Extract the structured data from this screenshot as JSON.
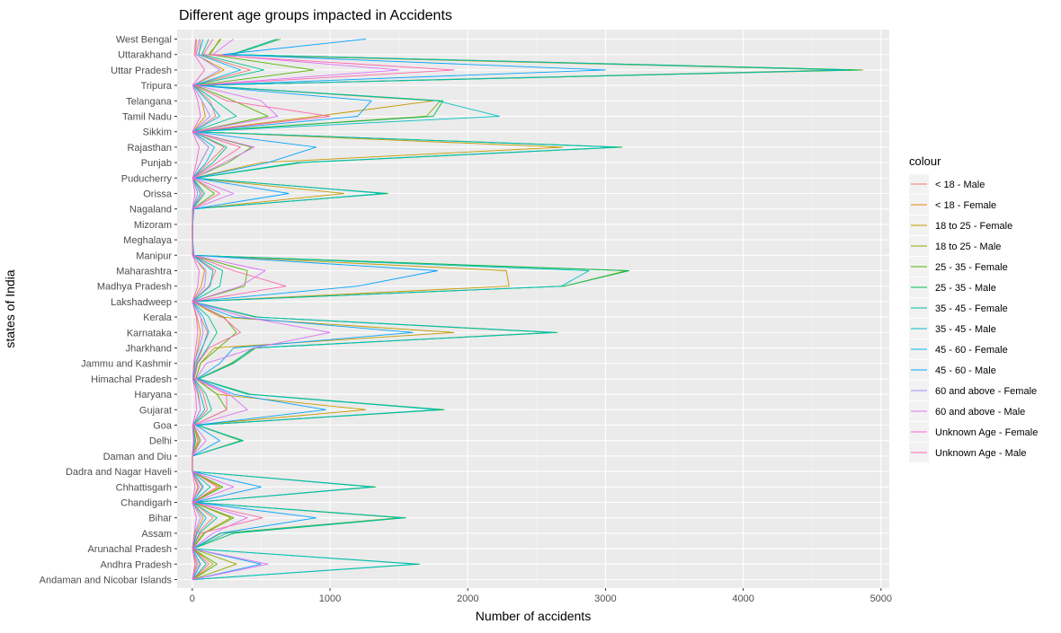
{
  "chart_data": {
    "type": "line",
    "title": "Different age groups impacted in Accidents",
    "xlabel": "Number of accidents",
    "ylabel": "states of India",
    "xlim": [
      -110,
      5060
    ],
    "x_ticks": [
      0,
      1000,
      2000,
      3000,
      4000,
      5000
    ],
    "grid": true,
    "legend": {
      "title": "colour",
      "position": "right"
    },
    "categories": [
      "Andaman and Nicobar Islands",
      "Andhra Pradesh",
      "Arunachal Pradesh",
      "Assam",
      "Bihar",
      "Chandigarh",
      "Chhattisgarh",
      "Dadra and Nagar Haveli",
      "Daman and Diu",
      "Delhi",
      "Goa",
      "Gujarat",
      "Haryana",
      "Himachal Pradesh",
      "Jammu and Kashmir",
      "Jharkhand",
      "Karnataka",
      "Kerala",
      "Lakshadweep",
      "Madhya Pradesh",
      "Maharashtra",
      "Manipur",
      "Meghalaya",
      "Mizoram",
      "Nagaland",
      "Orissa",
      "Puducherry",
      "Punjab",
      "Rajasthan",
      "Sikkim",
      "Tamil Nadu",
      "Telangana",
      "Tripura",
      "Uttar Pradesh",
      "Uttarakhand",
      "West Bengal"
    ],
    "series": [
      {
        "name": " < 18 - Male",
        "color": "#F8766D",
        "values": [
          3,
          55,
          3,
          35,
          150,
          5,
          70,
          0,
          0,
          20,
          5,
          110,
          80,
          10,
          30,
          75,
          110,
          60,
          0,
          120,
          170,
          5,
          0,
          0,
          4,
          75,
          5,
          120,
          230,
          5,
          170,
          130,
          10,
          420,
          50,
          60
        ]
      },
      {
        "name": "< 18 - Female",
        "color": "#E38900",
        "values": [
          1,
          30,
          1,
          20,
          80,
          2,
          40,
          0,
          0,
          10,
          3,
          60,
          45,
          5,
          15,
          40,
          60,
          35,
          0,
          65,
          90,
          2,
          0,
          0,
          2,
          40,
          3,
          60,
          120,
          3,
          95,
          70,
          5,
          230,
          25,
          30
        ]
      },
      {
        "name": "18 to 25 - Female",
        "color": "#C49A00",
        "values": [
          2,
          150,
          2,
          80,
          280,
          4,
          200,
          0,
          0,
          40,
          8,
          1260,
          180,
          25,
          60,
          160,
          1900,
          200,
          0,
          2300,
          2280,
          5,
          1,
          1,
          5,
          1100,
          8,
          500,
          2690,
          6,
          900,
          1750,
          20,
          4700,
          130,
          200
        ]
      },
      {
        "name": "18 to 25 - Male",
        "color": "#99A800",
        "values": [
          4,
          320,
          5,
          210,
          1500,
          10,
          1300,
          1,
          1,
          350,
          30,
          1800,
          400,
          40,
          280,
          450,
          2600,
          450,
          1,
          2700,
          3150,
          10,
          2,
          2,
          10,
          1400,
          20,
          780,
          3100,
          15,
          1700,
          1800,
          40,
          4870,
          280,
          620
        ]
      },
      {
        "name": "25 - 35 - Female",
        "color": "#53B400",
        "values": [
          2,
          180,
          2,
          90,
          300,
          5,
          220,
          0,
          0,
          60,
          10,
          250,
          180,
          25,
          60,
          190,
          320,
          230,
          0,
          380,
          400,
          5,
          1,
          1,
          5,
          160,
          8,
          260,
          430,
          6,
          550,
          300,
          22,
          880,
          120,
          210
        ]
      },
      {
        "name": "25 - 35 - Male",
        "color": "#00BC56",
        "values": [
          5,
          1650,
          6,
          300,
          1550,
          15,
          1330,
          2,
          2,
          370,
          40,
          1830,
          420,
          50,
          300,
          460,
          2650,
          470,
          2,
          2700,
          3170,
          12,
          3,
          3,
          12,
          1420,
          25,
          800,
          3120,
          17,
          1750,
          1820,
          45,
          4850,
          300,
          640
        ]
      },
      {
        "name": "35 - 45 - Female",
        "color": "#00C094",
        "values": [
          1,
          100,
          1,
          50,
          180,
          2,
          130,
          0,
          0,
          25,
          5,
          140,
          100,
          15,
          35,
          110,
          180,
          120,
          0,
          200,
          220,
          3,
          0,
          0,
          3,
          90,
          5,
          150,
          250,
          3,
          320,
          170,
          12,
          520,
          70,
          120
        ]
      },
      {
        "name": "35 - 45 - Male",
        "color": "#00BFC4",
        "values": [
          4,
          1620,
          5,
          250,
          1530,
          12,
          1300,
          1,
          1,
          360,
          35,
          1780,
          400,
          45,
          290,
          440,
          2620,
          460,
          1,
          2680,
          2880,
          10,
          2,
          2,
          10,
          1390,
          22,
          760,
          3080,
          15,
          2230,
          1780,
          42,
          4760,
          290,
          610
        ]
      },
      {
        "name": "45 - 60 - Female",
        "color": "#00B6EB",
        "values": [
          1,
          60,
          1,
          30,
          100,
          1,
          80,
          0,
          0,
          15,
          3,
          90,
          60,
          8,
          20,
          70,
          120,
          80,
          0,
          130,
          150,
          2,
          0,
          0,
          2,
          60,
          3,
          100,
          160,
          2,
          200,
          110,
          8,
          350,
          45,
          80
        ]
      },
      {
        "name": "45 - 60 - Male",
        "color": "#06A4FF",
        "values": [
          3,
          500,
          3,
          200,
          900,
          10,
          500,
          1,
          1,
          200,
          25,
          970,
          300,
          35,
          200,
          300,
          1600,
          300,
          1,
          1200,
          1780,
          8,
          2,
          2,
          8,
          700,
          18,
          550,
          900,
          12,
          1200,
          1300,
          35,
          3000,
          220,
          1260
        ]
      },
      {
        "name": "60 and above - Female",
        "color": "#A58AFF",
        "values": [
          0,
          40,
          0,
          15,
          60,
          1,
          50,
          0,
          0,
          8,
          2,
          60,
          40,
          5,
          10,
          50,
          80,
          60,
          0,
          90,
          100,
          1,
          0,
          0,
          1,
          40,
          2,
          60,
          120,
          1,
          130,
          70,
          5,
          200,
          30,
          50
        ]
      },
      {
        "name": "60 and above - Male",
        "color": "#DF70F8",
        "values": [
          2,
          550,
          2,
          150,
          400,
          8,
          300,
          1,
          1,
          100,
          15,
          400,
          270,
          30,
          100,
          450,
          1000,
          380,
          1,
          350,
          530,
          5,
          1,
          1,
          5,
          300,
          12,
          230,
          450,
          8,
          620,
          500,
          25,
          1500,
          150,
          300
        ]
      },
      {
        "name": "Unknown Age - Female",
        "color": "#FB61D7",
        "values": [
          0,
          20,
          0,
          15,
          30,
          0,
          20,
          0,
          0,
          10,
          2,
          30,
          25,
          3,
          10,
          25,
          40,
          30,
          0,
          40,
          50,
          1,
          0,
          0,
          1,
          20,
          2,
          30,
          50,
          1,
          60,
          40,
          3,
          90,
          15,
          25
        ]
      },
      {
        "name": "Unknown Age - Male",
        "color": "#FF66A8",
        "values": [
          1,
          120,
          1,
          60,
          510,
          3,
          180,
          0,
          0,
          50,
          8,
          250,
          250,
          15,
          40,
          120,
          350,
          220,
          0,
          680,
          300,
          3,
          0,
          0,
          3,
          200,
          5,
          180,
          350,
          4,
          1000,
          250,
          12,
          1900,
          80,
          150
        ]
      }
    ]
  }
}
